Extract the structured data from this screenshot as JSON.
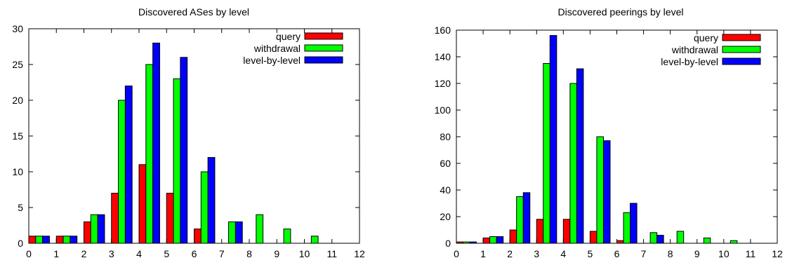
{
  "chart_data": [
    {
      "type": "bar",
      "title": "Discovered ASes by level",
      "xlabel": "",
      "ylabel": "",
      "xlim": [
        0,
        12
      ],
      "ylim": [
        0,
        30
      ],
      "xticks": [
        0,
        1,
        2,
        3,
        4,
        5,
        6,
        7,
        8,
        9,
        10,
        11,
        12
      ],
      "yticks": [
        0,
        5,
        10,
        15,
        20,
        25,
        30
      ],
      "legend_position": "top-right",
      "grid": false,
      "series": [
        {
          "name": "query",
          "color": "#ff0000",
          "x": [
            0,
            1,
            2,
            3,
            4,
            5,
            6,
            7,
            8,
            9,
            10,
            11
          ],
          "values": [
            1,
            1,
            3,
            7,
            11,
            7,
            2,
            0,
            0,
            0,
            0,
            0
          ]
        },
        {
          "name": "withdrawal",
          "color": "#00ff00",
          "x": [
            0,
            1,
            2,
            3,
            4,
            5,
            6,
            7,
            8,
            9,
            10,
            11
          ],
          "values": [
            1,
            1,
            4,
            20,
            25,
            23,
            10,
            3,
            4,
            2,
            1,
            0
          ]
        },
        {
          "name": "level-by-level",
          "color": "#0000ff",
          "x": [
            0,
            1,
            2,
            3,
            4,
            5,
            6,
            7,
            8,
            9,
            10,
            11
          ],
          "values": [
            1,
            1,
            4,
            22,
            28,
            26,
            12,
            3,
            0,
            0,
            0,
            0
          ]
        }
      ]
    },
    {
      "type": "bar",
      "title": "Discovered peerings by level",
      "xlabel": "",
      "ylabel": "",
      "xlim": [
        0,
        12
      ],
      "ylim": [
        0,
        160
      ],
      "xticks": [
        0,
        1,
        2,
        3,
        4,
        5,
        6,
        7,
        8,
        9,
        10,
        11,
        12
      ],
      "yticks": [
        0,
        20,
        40,
        60,
        80,
        100,
        120,
        140,
        160
      ],
      "legend_position": "top-right",
      "grid": false,
      "series": [
        {
          "name": "query",
          "color": "#ff0000",
          "x": [
            0,
            1,
            2,
            3,
            4,
            5,
            6,
            7,
            8,
            9,
            10,
            11
          ],
          "values": [
            1,
            4,
            10,
            18,
            18,
            9,
            2,
            0,
            0,
            0,
            0,
            0
          ]
        },
        {
          "name": "withdrawal",
          "color": "#00ff00",
          "x": [
            0,
            1,
            2,
            3,
            4,
            5,
            6,
            7,
            8,
            9,
            10,
            11
          ],
          "values": [
            1,
            5,
            35,
            135,
            120,
            80,
            23,
            8,
            9,
            4,
            2,
            0
          ]
        },
        {
          "name": "level-by-level",
          "color": "#0000ff",
          "x": [
            0,
            1,
            2,
            3,
            4,
            5,
            6,
            7,
            8,
            9,
            10,
            11
          ],
          "values": [
            1,
            5,
            38,
            156,
            131,
            77,
            30,
            6,
            0,
            0,
            0,
            0
          ]
        }
      ]
    }
  ]
}
